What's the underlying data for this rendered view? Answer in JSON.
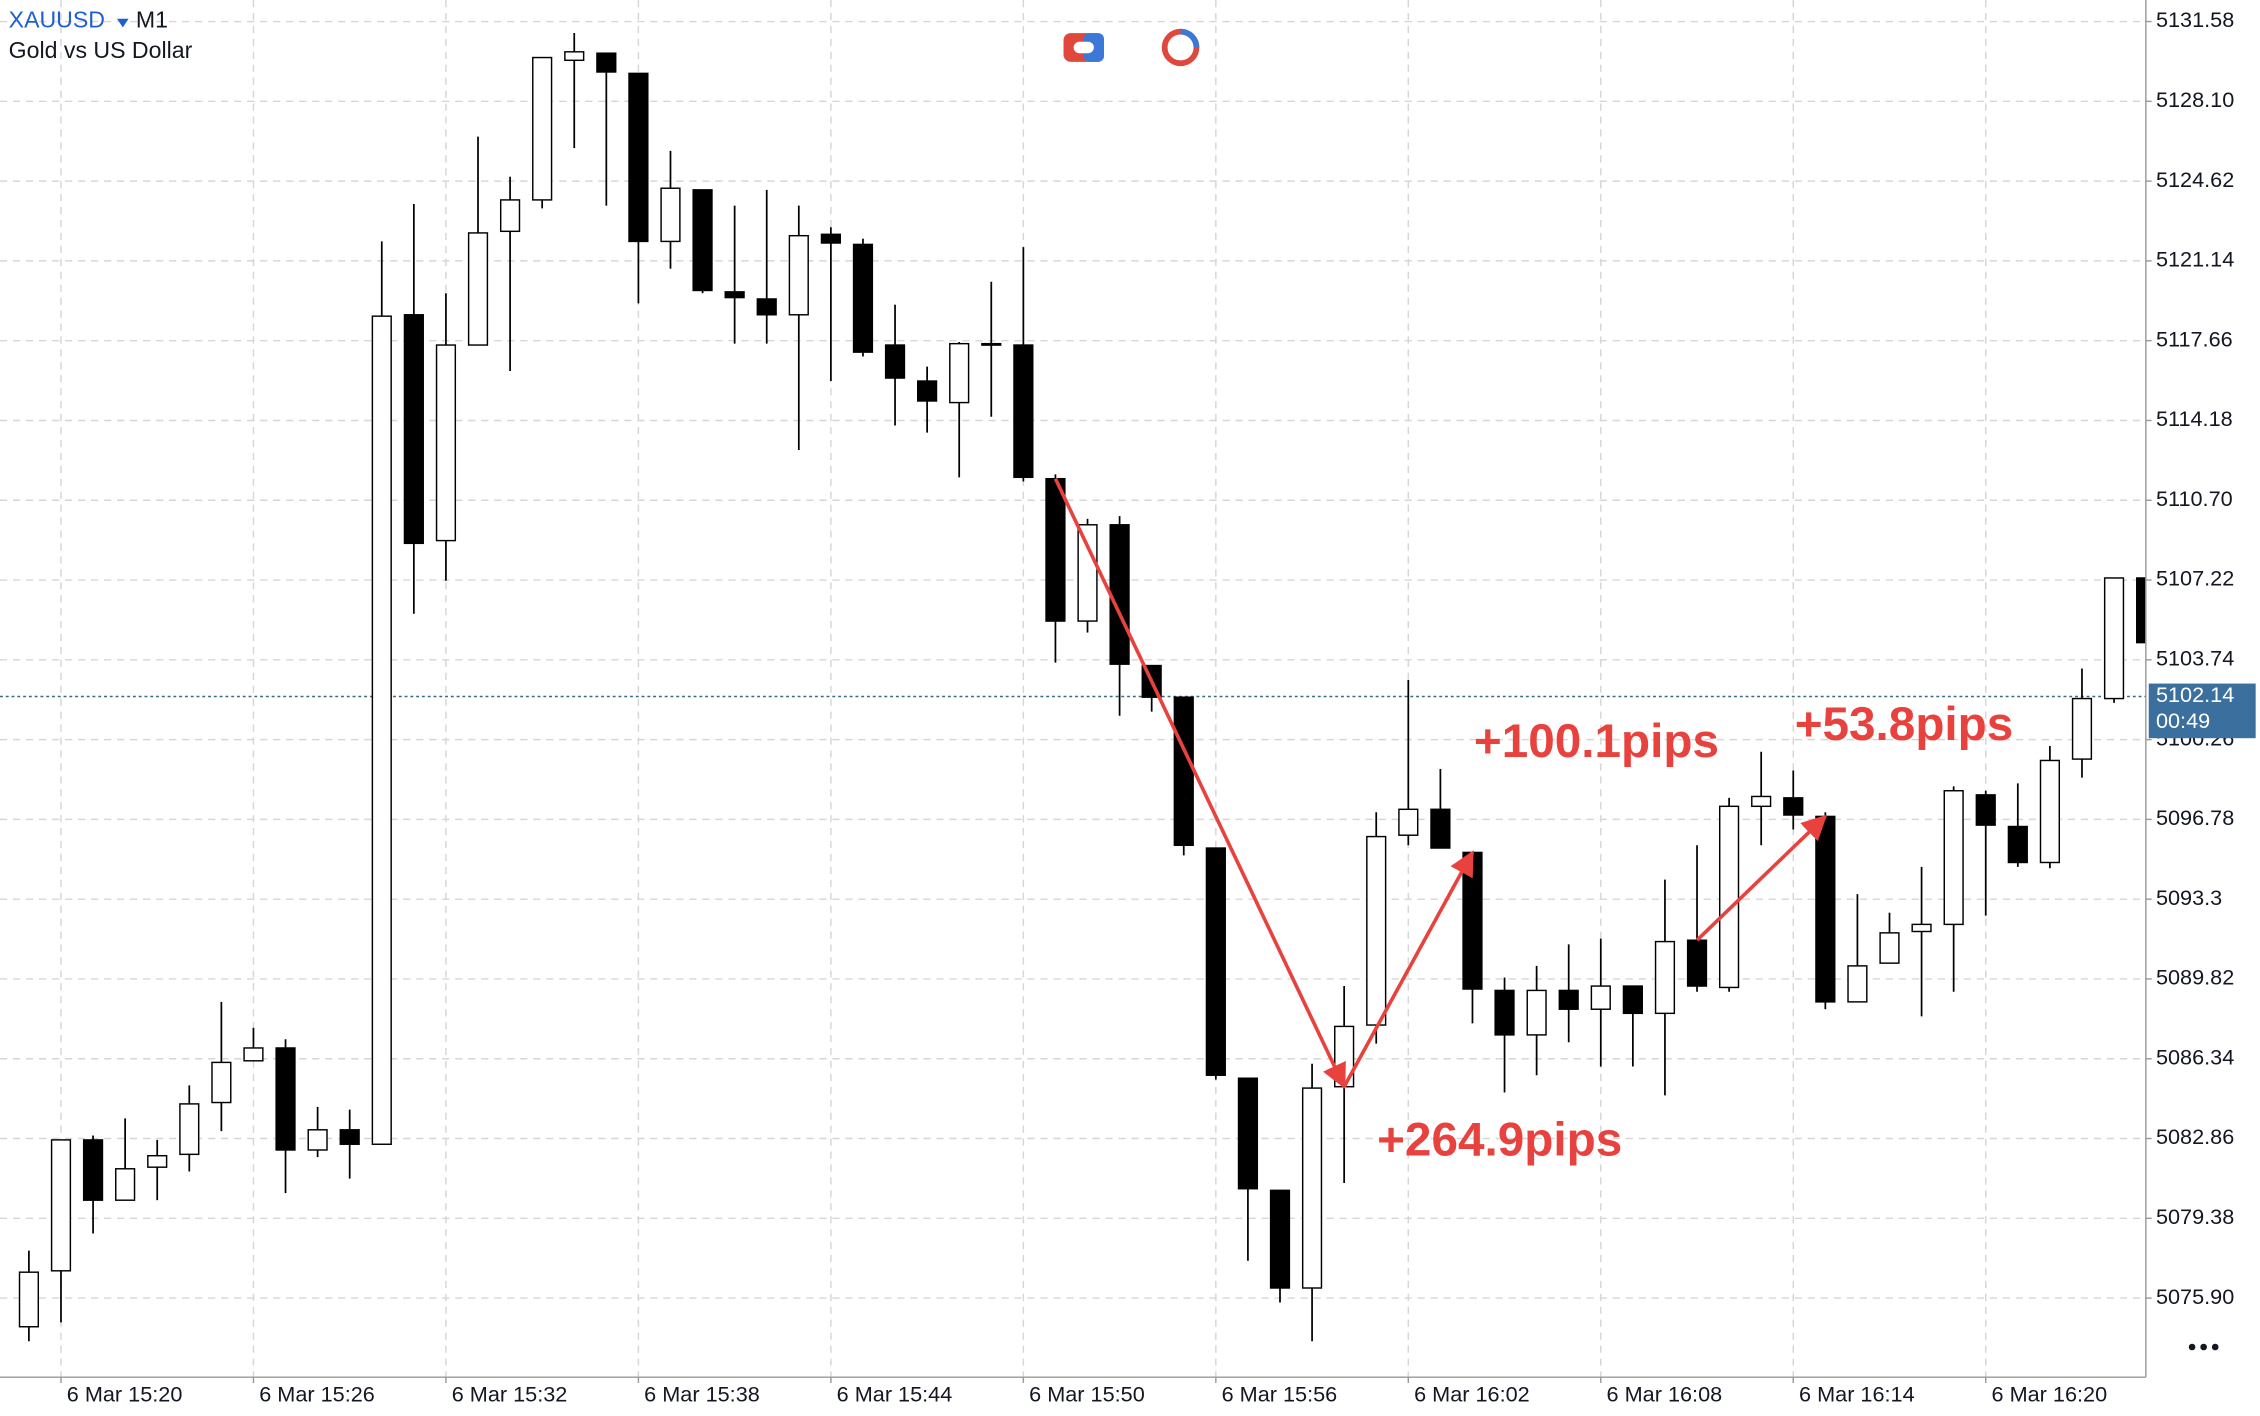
{
  "chart_data": {
    "type": "candlestick",
    "symbol": "XAUUSD",
    "timeframe": "M1",
    "title": "Gold vs US Dollar",
    "categories": [
      null,
      "6 Mar 15:20",
      null,
      null,
      null,
      null,
      null,
      "6 Mar 15:26",
      null,
      null,
      null,
      null,
      null,
      "6 Mar 15:32",
      null,
      null,
      null,
      null,
      null,
      "6 Mar 15:38",
      null,
      null,
      null,
      null,
      null,
      "6 Mar 15:44",
      null,
      null,
      null,
      null,
      null,
      "6 Mar 15:50",
      null,
      null,
      null,
      null,
      null,
      "6 Mar 15:56",
      null,
      null,
      null,
      null,
      null,
      "6 Mar 16:02",
      null,
      null,
      null,
      null,
      null,
      "6 Mar 16:08",
      null,
      null,
      null,
      null,
      null,
      "6 Mar 16:14",
      null,
      null,
      null,
      null,
      null,
      "6 Mar 16:20",
      null,
      null,
      null,
      null,
      null
    ],
    "open": [
      5074.65,
      5077.09,
      5082.8,
      5080.17,
      5081.61,
      5082.17,
      5084.43,
      5086.25,
      5086.81,
      5082.36,
      5083.24,
      5082.61,
      5118.79,
      5108.94,
      5117.47,
      5122.43,
      5123.8,
      5129.89,
      5130.2,
      5129.32,
      5121.99,
      5124.24,
      5119.79,
      5119.48,
      5118.79,
      5122.3,
      5121.86,
      5117.47,
      5115.9,
      5114.96,
      5117.53,
      5117.47,
      5111.64,
      5105.43,
      5109.63,
      5103.49,
      5102.11,
      5095.53,
      5085.49,
      5080.6,
      5076.34,
      5085.12,
      5087.81,
      5096.09,
      5097.22,
      5095.34,
      5089.32,
      5087.38,
      5089.32,
      5088.5,
      5089.51,
      5088.32,
      5091.51,
      5089.45,
      5097.35,
      5097.72,
      5096.91,
      5088.82,
      5090.51,
      5091.89,
      5092.2,
      5097.85,
      5096.47,
      5094.9,
      5099.41,
      5102.05,
      5107.31
    ],
    "high": [
      5077.97,
      5082.8,
      5082.99,
      5083.74,
      5082.8,
      5085.18,
      5088.82,
      5087.69,
      5087.19,
      5084.24,
      5084.12,
      5121.99,
      5123.62,
      5119.73,
      5126.56,
      5124.81,
      5130.01,
      5131.08,
      5130.2,
      5129.32,
      5125.94,
      5124.24,
      5123.55,
      5124.24,
      5123.55,
      5122.61,
      5122.11,
      5119.23,
      5116.53,
      5117.6,
      5120.23,
      5121.74,
      5111.83,
      5109.89,
      5110.01,
      5103.49,
      5102.11,
      5095.53,
      5085.49,
      5080.6,
      5086.12,
      5089.51,
      5097.09,
      5102.86,
      5098.98,
      5095.34,
      5089.88,
      5090.39,
      5091.33,
      5091.58,
      5089.51,
      5094.15,
      5095.65,
      5097.72,
      5099.73,
      5098.91,
      5097.09,
      5093.52,
      5092.71,
      5094.71,
      5098.22,
      5098.03,
      5098.35,
      5099.98,
      5103.36,
      5107.31,
      5107.31
    ],
    "low": [
      5074.02,
      5074.84,
      5078.72,
      5080.17,
      5080.17,
      5081.42,
      5083.18,
      5086.25,
      5080.48,
      5082.05,
      5081.11,
      5082.61,
      5105.75,
      5107.19,
      5117.47,
      5116.34,
      5123.43,
      5126.06,
      5123.55,
      5119.29,
      5120.8,
      5119.73,
      5117.53,
      5117.53,
      5112.89,
      5115.9,
      5116.97,
      5113.96,
      5113.65,
      5111.7,
      5114.34,
      5111.52,
      5103.62,
      5104.93,
      5101.3,
      5101.48,
      5095.21,
      5085.43,
      5077.53,
      5075.71,
      5074.02,
      5080.92,
      5087.0,
      5095.65,
      5095.53,
      5087.88,
      5084.87,
      5085.62,
      5087.06,
      5086.0,
      5086.0,
      5084.74,
      5089.26,
      5089.26,
      5095.65,
      5096.34,
      5088.5,
      5088.82,
      5090.51,
      5088.19,
      5089.26,
      5092.58,
      5094.71,
      5094.65,
      5098.6,
      5101.86,
      5104.49
    ],
    "close": [
      5077.03,
      5082.8,
      5080.17,
      5081.54,
      5082.11,
      5084.37,
      5086.18,
      5086.81,
      5082.36,
      5083.24,
      5082.61,
      5118.73,
      5108.82,
      5117.47,
      5122.36,
      5123.8,
      5130.01,
      5130.26,
      5129.38,
      5121.99,
      5124.31,
      5119.85,
      5119.54,
      5118.79,
      5122.24,
      5121.92,
      5117.16,
      5116.03,
      5115.03,
      5117.53,
      5117.47,
      5111.7,
      5105.43,
      5109.63,
      5103.55,
      5102.11,
      5095.65,
      5085.62,
      5080.67,
      5076.34,
      5085.06,
      5087.75,
      5096.03,
      5097.22,
      5095.53,
      5089.38,
      5087.38,
      5089.32,
      5088.5,
      5089.51,
      5088.32,
      5091.45,
      5089.51,
      5097.35,
      5097.78,
      5096.97,
      5088.82,
      5090.39,
      5091.83,
      5092.2,
      5098.03,
      5096.53,
      5094.9,
      5099.35,
      5102.05,
      5107.31,
      5104.49
    ],
    "up_color": "#ffffff",
    "down_color": "#000000",
    "ylim": [
      5072.45,
      5132.52
    ],
    "yticks": [
      {
        "value": 5075.9,
        "label": "5075.90"
      },
      5079.38,
      5082.86,
      5086.34,
      5089.82,
      5093.3,
      5096.78,
      5100.26,
      5103.74,
      5107.22,
      {
        "value": 5110.7,
        "label": "5110.70"
      },
      5114.18,
      5117.66,
      5121.14,
      5124.62,
      {
        "value": 5128.1,
        "label": "5128.10"
      },
      5131.58
    ],
    "grid": true,
    "current_price": 5102.14,
    "countdown": "00:49",
    "annotation_color": "#e8423f",
    "annotations": [
      {
        "text": "+264.9pips"
      },
      {
        "text": "+100.1pips"
      },
      {
        "text": "+53.8pips"
      }
    ]
  }
}
